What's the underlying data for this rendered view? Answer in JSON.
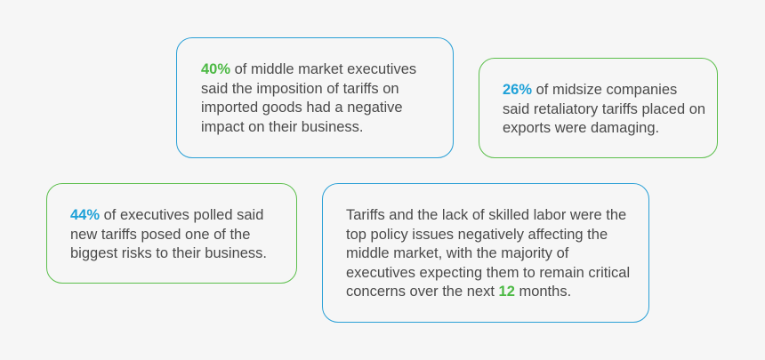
{
  "colors": {
    "background": "#f6f6f6",
    "text": "#4a4a4a",
    "accent_blue": "#1ea1d8",
    "accent_green": "#4cb944",
    "border_blue": "#2aa0d6",
    "border_green": "#5cbf4c"
  },
  "cards": [
    {
      "highlight": "40%",
      "text": " of middle market executives said the imposition of tariffs on imported goods had a negative impact on their business."
    },
    {
      "highlight": "26%",
      "text": " of midsize companies said retaliatory tariffs placed on exports were damaging."
    },
    {
      "highlight": "44%",
      "text": " of executives polled said new tariffs posed one of the biggest risks to their business."
    },
    {
      "text_before": "Tariffs and the lack of skilled labor were the top policy issues negatively affecting the middle market, with the majority of executives expecting them to remain critical concerns over the next ",
      "highlight": "12",
      "text_after": " months."
    }
  ]
}
